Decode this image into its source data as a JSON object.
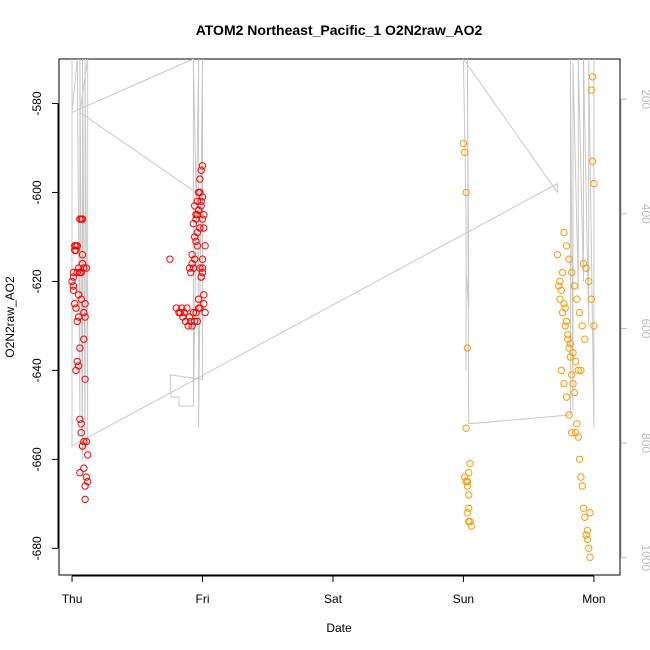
{
  "chart_data": {
    "type": "scatter",
    "title": "ATOM2 Northeast_Pacific_1 O2N2raw_AO2",
    "xlabel": "Date",
    "ylabel": "O2N2raw_AO2",
    "x_ticks": [
      "Thu",
      "Fri",
      "Sat",
      "Sun",
      "Mon"
    ],
    "x_range_days": [
      -0.1,
      4.2
    ],
    "ylim": [
      -686,
      -570
    ],
    "y_ticks": [
      -580,
      -600,
      -620,
      -640,
      -660,
      -680
    ],
    "right_axis": {
      "ticks": [
        200,
        400,
        600,
        800,
        1000
      ],
      "range": [
        130,
        1030
      ],
      "inverted": true,
      "color": "#bdbdbd"
    },
    "colors": {
      "series_red": "#ff0000",
      "series_orange": "#ff9900",
      "gray_line": "#c8c8c8"
    },
    "series": [
      {
        "color": "series_red",
        "x": [
          0.0,
          0.01,
          0.01,
          0.02,
          0.01,
          0.01,
          0.02,
          0.03,
          0.02,
          0.03,
          0.04,
          0.03,
          0.04,
          0.04,
          0.05,
          0.06,
          0.06,
          0.05,
          0.06,
          0.07,
          0.05,
          0.08,
          0.07,
          0.07,
          0.08,
          0.09,
          0.09,
          0.08,
          0.1,
          0.1,
          0.09,
          0.11,
          0.1,
          0.11,
          0.12,
          0.12,
          0.08,
          0.09,
          0.11,
          0.1,
          0.07,
          0.06,
          0.08,
          0.09,
          0.1,
          0.06,
          0.07,
          0.03,
          0.05,
          0.04
        ],
        "y": [
          -620,
          -619,
          -618,
          -612,
          -621,
          -622,
          -613,
          -612,
          -625,
          -613,
          -612,
          -626,
          -618,
          -629,
          -628,
          -635,
          -606,
          -617,
          -618,
          -606,
          -623,
          -606,
          -618,
          -624,
          -616,
          -627,
          -617,
          -614,
          -628,
          -625,
          -633,
          -617,
          -642,
          -656,
          -659,
          -665,
          -657,
          -662,
          -664,
          -666,
          -652,
          -651,
          -657,
          -656,
          -669,
          -663,
          -654,
          -640,
          -639,
          -638
        ]
      },
      {
        "color": "series_red",
        "x": [
          0.75,
          0.8,
          0.82,
          0.84,
          0.86,
          0.88,
          0.9,
          0.92,
          0.94,
          0.96,
          0.98,
          0.83,
          0.85,
          0.87,
          0.89,
          0.91,
          0.93,
          0.95,
          0.97,
          0.99,
          0.9,
          0.92,
          0.94,
          0.91,
          0.93,
          0.95,
          0.92,
          0.94,
          0.96,
          0.93,
          0.95,
          0.97,
          0.94,
          0.96,
          0.98,
          0.95,
          0.97,
          0.99,
          0.96,
          0.98,
          1.0,
          1.0,
          0.99,
          1.01,
          1.02,
          1.01,
          1.0,
          0.99,
          1.0,
          1.01,
          1.02,
          0.97,
          0.98,
          0.99,
          1.0,
          0.96,
          0.98,
          1.0,
          1.01,
          0.97
        ],
        "y": [
          -615,
          -626,
          -627,
          -626,
          -627,
          -626,
          -628,
          -630,
          -629,
          -629,
          -626,
          -627,
          -628,
          -629,
          -630,
          -629,
          -627,
          -627,
          -624,
          -619,
          -617,
          -616,
          -615,
          -618,
          -617,
          -611,
          -614,
          -610,
          -605,
          -607,
          -606,
          -604,
          -603,
          -602,
          -600,
          -605,
          -604,
          -602,
          -609,
          -608,
          -606,
          -601,
          -603,
          -605,
          -612,
          -608,
          -615,
          -619,
          -617,
          -623,
          -627,
          -600,
          -597,
          -595,
          -594,
          -612,
          -617,
          -618,
          -625,
          -626
        ]
      },
      {
        "color": "series_orange",
        "x": [
          3.0,
          3.01,
          3.02,
          3.03,
          3.02,
          3.01,
          3.02,
          3.03,
          3.04,
          3.05,
          3.04,
          3.03,
          3.04,
          3.05,
          3.06,
          3.03,
          3.04
        ],
        "y": [
          -589,
          -591,
          -600,
          -635,
          -653,
          -664,
          -665,
          -666,
          -668,
          -661,
          -663,
          -672,
          -674,
          -674,
          -675,
          -665,
          -671
        ]
      },
      {
        "color": "series_orange",
        "x": [
          3.72,
          3.74,
          3.75,
          3.76,
          3.77,
          3.78,
          3.79,
          3.8,
          3.81,
          3.82,
          3.83,
          3.84,
          3.85,
          3.86,
          3.87,
          3.88,
          3.89,
          3.9,
          3.91,
          3.92,
          3.93,
          3.94,
          3.95,
          3.96,
          3.97,
          3.98,
          3.99,
          4.0,
          3.73,
          3.74,
          3.76,
          3.78,
          3.8,
          3.82,
          3.84,
          3.86,
          3.88,
          3.9,
          3.92,
          3.94,
          3.96,
          3.98,
          4.0,
          3.77,
          3.79,
          3.81,
          3.83,
          3.85,
          3.87,
          3.89,
          3.91,
          3.93,
          3.95,
          3.97,
          3.99,
          3.75,
          3.77,
          3.79,
          3.81,
          3.83
        ],
        "y": [
          -614,
          -620,
          -622,
          -618,
          -625,
          -626,
          -629,
          -633,
          -635,
          -637,
          -641,
          -643,
          -645,
          -654,
          -652,
          -655,
          -660,
          -664,
          -666,
          -671,
          -673,
          -677,
          -678,
          -680,
          -682,
          -577,
          -574,
          -598,
          -621,
          -624,
          -627,
          -630,
          -632,
          -634,
          -636,
          -638,
          -640,
          -640,
          -616,
          -617,
          -620,
          -624,
          -630,
          -609,
          -612,
          -615,
          -618,
          -621,
          -624,
          -627,
          -630,
          -633,
          -676,
          -672,
          -593,
          -640,
          -643,
          -646,
          -650,
          -654
        ]
      }
    ],
    "gray_line": {
      "x": [
        0.0,
        0.0,
        0.04,
        0.06,
        0.06,
        0.08,
        0.08,
        0.1,
        0.1,
        0.12,
        0.12,
        0.06,
        0.95,
        0.93,
        0.93,
        0.97,
        0.97,
        1.0,
        1.0,
        1.0,
        0.75,
        0.76,
        0.82,
        0.82,
        0.93,
        0.93,
        0.0,
        0.0,
        3.72,
        3.72,
        3.0,
        3.02,
        3.02,
        3.02,
        3.02,
        3.04,
        3.04,
        3.03,
        3.04,
        3.82,
        3.82,
        3.84,
        3.84,
        3.88,
        3.88,
        3.92,
        3.92,
        3.96,
        3.96,
        4.0,
        4.0
      ],
      "y": [
        -570,
        -582,
        -570,
        -650,
        -570,
        -660,
        -570,
        -658,
        -570,
        -656,
        -570,
        -582,
        -600,
        -570,
        -648,
        -570,
        -653,
        -570,
        -600,
        -642,
        -641,
        -646,
        -646,
        -648,
        -648,
        -570,
        -582,
        -657,
        -598,
        -600,
        -570,
        -605,
        -607,
        -640,
        -618,
        -626,
        -618,
        -570,
        -652,
        -650,
        -570,
        -649,
        -571,
        -622,
        -570,
        -620,
        -570,
        -630,
        -570,
        -653,
        -570
      ]
    }
  }
}
